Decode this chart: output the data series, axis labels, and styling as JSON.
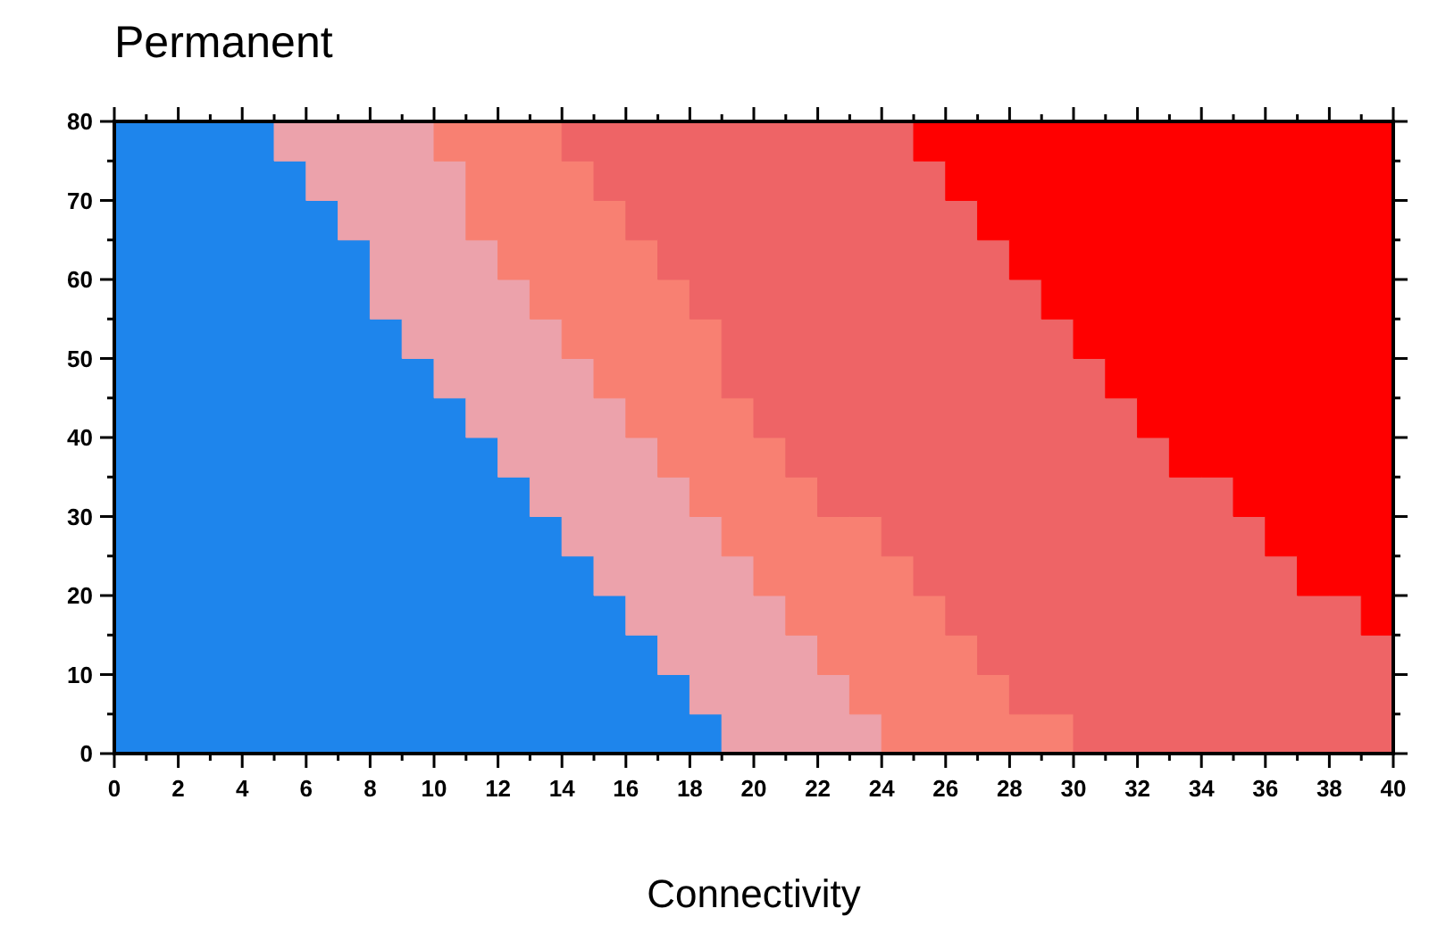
{
  "chart_data": {
    "type": "area",
    "title": "Permanent",
    "xlabel": "Connectivity",
    "stacked": true,
    "x": [
      0,
      1,
      1,
      2,
      2,
      3,
      3,
      4,
      4,
      5,
      5,
      6,
      6,
      7,
      7,
      8,
      8,
      9,
      9,
      10,
      10,
      11,
      11,
      12,
      12,
      13,
      13,
      14,
      14,
      15,
      15,
      16,
      16,
      17,
      17,
      18,
      18,
      19,
      19,
      20,
      20,
      21,
      21,
      22,
      22,
      23,
      23,
      24,
      24,
      25,
      25,
      26,
      26,
      27,
      27,
      28,
      28,
      29,
      29,
      30,
      30,
      31,
      31,
      32,
      32,
      33,
      33,
      34,
      34,
      35,
      35,
      36,
      36,
      37,
      37,
      38,
      38,
      39,
      39,
      40
    ],
    "series": [
      {
        "color": "#1e85ec",
        "values": [
          80,
          80,
          80,
          80,
          80,
          80,
          80,
          80,
          80,
          80,
          75,
          75,
          70,
          70,
          65,
          65,
          55,
          55,
          50,
          50,
          45,
          45,
          40,
          40,
          35,
          35,
          30,
          30,
          25,
          25,
          20,
          20,
          15,
          15,
          10,
          10,
          5,
          5,
          null,
          null,
          null,
          null,
          null,
          null,
          null,
          null,
          null,
          null,
          null,
          null,
          null,
          null,
          null,
          null,
          null,
          null,
          null,
          null,
          null,
          null,
          null,
          null,
          null,
          null,
          null,
          null,
          null,
          null,
          null,
          null,
          null,
          null,
          null,
          null,
          null,
          null,
          null,
          null,
          null,
          null
        ]
      },
      {
        "color": "#eca2ab",
        "values": [
          null,
          null,
          null,
          null,
          null,
          null,
          null,
          null,
          null,
          null,
          5,
          5,
          10,
          10,
          15,
          15,
          25,
          25,
          30,
          30,
          30,
          30,
          25,
          25,
          25,
          25,
          25,
          25,
          25,
          25,
          25,
          25,
          25,
          25,
          25,
          25,
          25,
          25,
          25,
          25,
          20,
          20,
          15,
          15,
          10,
          10,
          5,
          5,
          null,
          null,
          null,
          null,
          null,
          null,
          null,
          null,
          null,
          null,
          null,
          null,
          null,
          null,
          null,
          null,
          null,
          null,
          null,
          null,
          null,
          null,
          null,
          null,
          null,
          null,
          null,
          null,
          null,
          null,
          null,
          null
        ]
      },
      {
        "color": "#f88072",
        "values": [
          null,
          null,
          null,
          null,
          null,
          null,
          null,
          null,
          null,
          null,
          null,
          null,
          null,
          null,
          null,
          null,
          null,
          null,
          null,
          null,
          5,
          5,
          15,
          15,
          20,
          20,
          25,
          25,
          25,
          25,
          25,
          25,
          25,
          25,
          25,
          25,
          25,
          25,
          20,
          20,
          20,
          20,
          20,
          20,
          20,
          20,
          25,
          25,
          25,
          25,
          20,
          20,
          15,
          15,
          10,
          10,
          5,
          5,
          5,
          5,
          null,
          null,
          null,
          null,
          null,
          null,
          null,
          null,
          null,
          null,
          null,
          null,
          null,
          null,
          null,
          null,
          null,
          null,
          null,
          null
        ]
      },
      {
        "color": "#ee6466",
        "values": [
          null,
          null,
          null,
          null,
          null,
          null,
          null,
          null,
          null,
          null,
          null,
          null,
          null,
          null,
          null,
          null,
          null,
          null,
          null,
          null,
          null,
          null,
          null,
          null,
          null,
          null,
          null,
          null,
          5,
          5,
          10,
          10,
          15,
          15,
          20,
          20,
          25,
          25,
          35,
          35,
          40,
          40,
          45,
          45,
          50,
          50,
          50,
          50,
          55,
          55,
          55,
          55,
          55,
          55,
          55,
          55,
          55,
          55,
          50,
          50,
          50,
          50,
          45,
          45,
          40,
          40,
          35,
          35,
          35,
          35,
          30,
          30,
          25,
          25,
          20,
          20,
          20,
          20,
          15,
          15
        ]
      },
      {
        "color": "#ff0000",
        "values": [
          null,
          null,
          null,
          null,
          null,
          null,
          null,
          null,
          null,
          null,
          null,
          null,
          null,
          null,
          null,
          null,
          null,
          null,
          null,
          null,
          null,
          null,
          null,
          null,
          null,
          null,
          null,
          null,
          null,
          null,
          null,
          null,
          null,
          null,
          null,
          null,
          null,
          null,
          null,
          null,
          null,
          null,
          null,
          null,
          null,
          null,
          null,
          null,
          null,
          null,
          5,
          5,
          10,
          10,
          15,
          15,
          20,
          20,
          25,
          25,
          30,
          30,
          35,
          35,
          40,
          40,
          45,
          45,
          45,
          45,
          50,
          50,
          55,
          55,
          60,
          60,
          60,
          60,
          65,
          65
        ]
      }
    ],
    "xlim": [
      0,
      40
    ],
    "xticks": [
      0,
      {
        "value": 1,
        "label": null
      },
      2,
      {
        "value": 3,
        "label": null
      },
      4,
      {
        "value": 5,
        "label": null
      },
      6,
      {
        "value": 7,
        "label": null
      },
      8,
      {
        "value": 9,
        "label": null
      },
      10,
      {
        "value": 11,
        "label": null
      },
      12,
      {
        "value": 13,
        "label": null
      },
      14,
      {
        "value": 15,
        "label": null
      },
      16,
      {
        "value": 17,
        "label": null
      },
      18,
      {
        "value": 19,
        "label": null
      },
      20,
      {
        "value": 21,
        "label": null
      },
      22,
      {
        "value": 23,
        "label": null
      },
      24,
      {
        "value": 25,
        "label": null
      },
      26,
      {
        "value": 27,
        "label": null
      },
      28,
      {
        "value": 29,
        "label": null
      },
      30,
      {
        "value": 31,
        "label": null
      },
      32,
      {
        "value": 33,
        "label": null
      },
      34,
      {
        "value": 35,
        "label": null
      },
      36,
      {
        "value": 37,
        "label": null
      },
      38,
      {
        "value": 39,
        "label": null
      },
      40
    ],
    "ylim": [
      0,
      80
    ],
    "yticks": [
      0,
      {
        "value": 5,
        "label": null
      },
      10,
      {
        "value": 15,
        "label": null
      },
      20,
      {
        "value": 25,
        "label": null
      },
      30,
      {
        "value": 35,
        "label": null
      },
      40,
      {
        "value": 45,
        "label": null
      },
      50,
      {
        "value": 55,
        "label": null
      },
      60,
      {
        "value": 65,
        "label": null
      },
      70,
      {
        "value": 75,
        "label": null
      },
      80
    ]
  }
}
